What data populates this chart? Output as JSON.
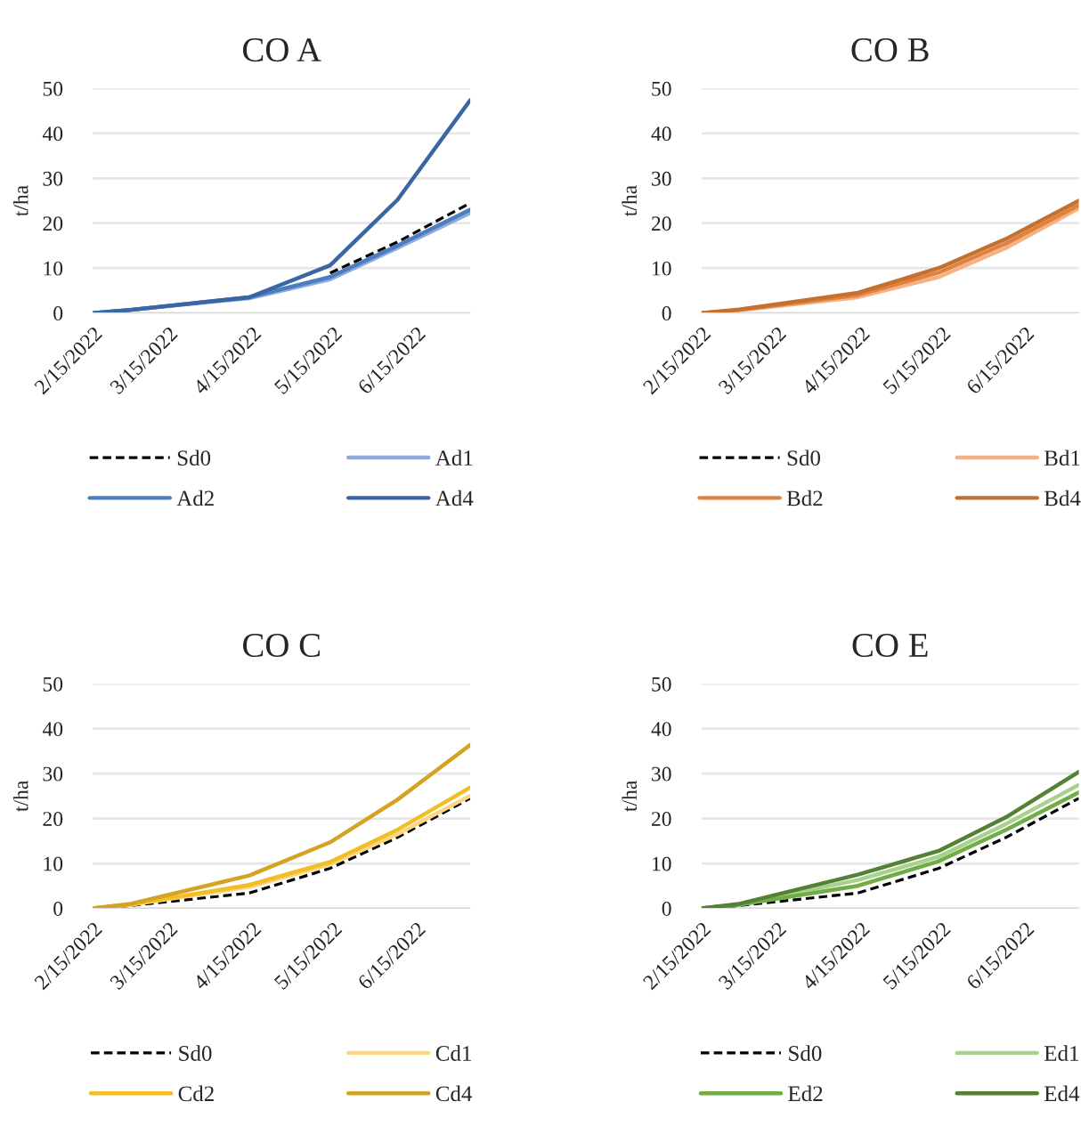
{
  "chart_data": [
    {
      "type": "line",
      "title": "CO A",
      "ylabel": "t/ha",
      "x": [
        "2022-02-15",
        "2022-03-01",
        "2022-04-14",
        "2022-05-14",
        "2022-06-08",
        "2022-07-05"
      ],
      "xlim": [
        "2022-02-15",
        "2022-07-05"
      ],
      "xticks": [
        {
          "value": "2022-02-15",
          "label": "2/15/2022"
        },
        {
          "value": "2022-03-15",
          "label": "3/15/2022"
        },
        {
          "value": "2022-04-15",
          "label": "4/15/2022"
        },
        {
          "value": "2022-05-15",
          "label": "5/15/2022"
        },
        {
          "value": "2022-06-15",
          "label": "6/15/2022"
        }
      ],
      "ylim": [
        0,
        50
      ],
      "yticks": [
        0,
        10,
        20,
        30,
        40,
        50
      ],
      "grid": "y",
      "legend": "bottom",
      "line_style": "solid",
      "marker": "none",
      "series": [
        {
          "name": "Sd0",
          "color": "#000000",
          "line_style": "dashed",
          "values": [
            null,
            null,
            null,
            8.9,
            15.8,
            24.5
          ]
        },
        {
          "name": "Ad1",
          "color": "#8faadc",
          "values": [
            0,
            0.7,
            3.3,
            7.5,
            14.5,
            22.3
          ]
        },
        {
          "name": "Ad2",
          "color": "#4a7ebf",
          "values": [
            0,
            0.7,
            3.5,
            8.0,
            15.0,
            23.0
          ]
        },
        {
          "name": "Ad4",
          "color": "#3a67a3",
          "values": [
            0,
            0.7,
            3.5,
            10.6,
            25.2,
            47.4
          ]
        }
      ]
    },
    {
      "type": "line",
      "title": "CO B",
      "ylabel": "t/ha",
      "x": [
        "2022-02-15",
        "2022-03-01",
        "2022-04-14",
        "2022-05-14",
        "2022-06-08",
        "2022-07-05"
      ],
      "xlim": [
        "2022-02-15",
        "2022-07-05"
      ],
      "xticks": [
        {
          "value": "2022-02-15",
          "label": "2/15/2022"
        },
        {
          "value": "2022-03-15",
          "label": "3/15/2022"
        },
        {
          "value": "2022-04-15",
          "label": "4/15/2022"
        },
        {
          "value": "2022-05-15",
          "label": "5/15/2022"
        },
        {
          "value": "2022-06-15",
          "label": "6/15/2022"
        }
      ],
      "ylim": [
        0,
        50
      ],
      "yticks": [
        0,
        10,
        20,
        30,
        40,
        50
      ],
      "grid": "y",
      "legend": "bottom",
      "line_style": "solid",
      "marker": "none",
      "series": [
        {
          "name": "Sd0",
          "color": "#000000",
          "line_style": "dashed",
          "values": [
            null,
            null,
            null,
            null,
            null,
            null
          ]
        },
        {
          "name": "Bd1",
          "color": "#f4b183",
          "values": [
            0,
            0.6,
            3.5,
            8.0,
            14.5,
            23.3
          ]
        },
        {
          "name": "Bd2",
          "color": "#e0823e",
          "values": [
            0,
            0.7,
            4.0,
            9.0,
            15.5,
            24.0
          ]
        },
        {
          "name": "Bd4",
          "color": "#c4702f",
          "values": [
            0,
            0.8,
            4.5,
            10.0,
            16.5,
            25.0
          ]
        }
      ]
    },
    {
      "type": "line",
      "title": "CO C",
      "ylabel": "t/ha",
      "x": [
        "2022-02-15",
        "2022-03-01",
        "2022-04-14",
        "2022-05-14",
        "2022-06-08",
        "2022-07-05"
      ],
      "xlim": [
        "2022-02-15",
        "2022-07-05"
      ],
      "xticks": [
        {
          "value": "2022-02-15",
          "label": "2/15/2022"
        },
        {
          "value": "2022-03-15",
          "label": "3/15/2022"
        },
        {
          "value": "2022-04-15",
          "label": "4/15/2022"
        },
        {
          "value": "2022-05-15",
          "label": "5/15/2022"
        },
        {
          "value": "2022-06-15",
          "label": "6/15/2022"
        }
      ],
      "ylim": [
        0,
        50
      ],
      "yticks": [
        0,
        10,
        20,
        30,
        40,
        50
      ],
      "grid": "y",
      "legend": "bottom",
      "line_style": "solid",
      "marker": "none",
      "series": [
        {
          "name": "Sd0",
          "color": "#000000",
          "line_style": "dashed",
          "values": [
            0,
            0.6,
            3.4,
            8.9,
            15.8,
            24.5
          ]
        },
        {
          "name": "Cd1",
          "color": "#ffd680",
          "values": [
            0,
            0.8,
            4.8,
            9.8,
            16.5,
            25.1
          ]
        },
        {
          "name": "Cd2",
          "color": "#f2be26",
          "values": [
            0,
            0.9,
            5.2,
            10.3,
            17.5,
            26.9
          ]
        },
        {
          "name": "Cd4",
          "color": "#d4a321",
          "values": [
            0,
            1.0,
            7.3,
            14.7,
            24.2,
            36.4
          ]
        }
      ]
    },
    {
      "type": "line",
      "title": "CO E",
      "ylabel": "t/ha",
      "x": [
        "2022-02-15",
        "2022-03-01",
        "2022-04-14",
        "2022-05-14",
        "2022-06-08",
        "2022-07-05"
      ],
      "xlim": [
        "2022-02-15",
        "2022-07-05"
      ],
      "xticks": [
        {
          "value": "2022-02-15",
          "label": "2/15/2022"
        },
        {
          "value": "2022-03-15",
          "label": "3/15/2022"
        },
        {
          "value": "2022-04-15",
          "label": "4/15/2022"
        },
        {
          "value": "2022-05-15",
          "label": "5/15/2022"
        },
        {
          "value": "2022-06-15",
          "label": "6/15/2022"
        }
      ],
      "ylim": [
        0,
        50
      ],
      "yticks": [
        0,
        10,
        20,
        30,
        40,
        50
      ],
      "grid": "y",
      "legend": "bottom",
      "line_style": "solid",
      "marker": "none",
      "series": [
        {
          "name": "Sd0",
          "color": "#000000",
          "line_style": "dashed",
          "values": [
            0,
            0.6,
            3.4,
            8.9,
            15.8,
            24.5
          ]
        },
        {
          "name": "Ed1",
          "color": "#a9d18e",
          "values": [
            0,
            0.9,
            6.3,
            11.5,
            18.8,
            27.5
          ]
        },
        {
          "name": "Ed2",
          "color": "#70ad47",
          "values": [
            0,
            0.8,
            5.0,
            10.5,
            17.5,
            25.8
          ]
        },
        {
          "name": "Ed4",
          "color": "#548235",
          "values": [
            0,
            1.0,
            7.5,
            12.8,
            20.3,
            30.4
          ]
        }
      ]
    }
  ]
}
